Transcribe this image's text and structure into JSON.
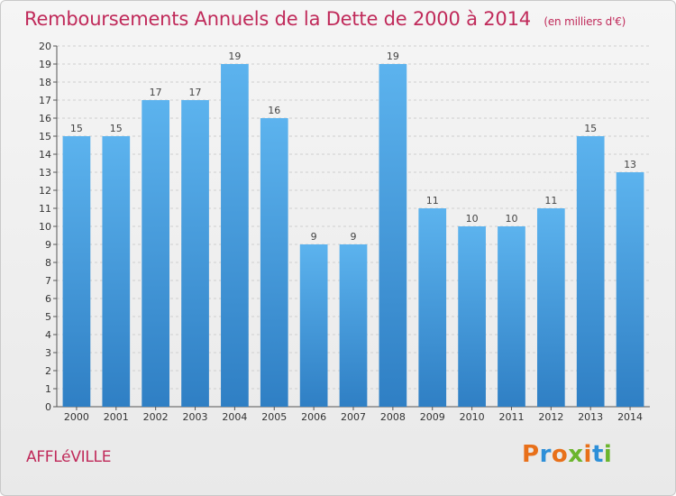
{
  "chart_data": {
    "type": "bar",
    "title": "Remboursements Annuels de la Dette de 2000 à 2014",
    "subtitle": "(en milliers d'€)",
    "categories": [
      "2000",
      "2001",
      "2002",
      "2003",
      "2004",
      "2005",
      "2006",
      "2007",
      "2008",
      "2009",
      "2010",
      "2011",
      "2012",
      "2013",
      "2014"
    ],
    "values": [
      15,
      15,
      17,
      17,
      19,
      16,
      9,
      9,
      19,
      11,
      10,
      10,
      11,
      15,
      13
    ],
    "ylim": [
      0,
      20
    ],
    "yticks": [
      0,
      1,
      2,
      3,
      4,
      5,
      6,
      7,
      8,
      9,
      10,
      11,
      12,
      13,
      14,
      15,
      16,
      17,
      18,
      19,
      20
    ],
    "xlabel": "",
    "ylabel": "",
    "grid": "horizontal-dashed"
  },
  "footer": {
    "commune": "AFFLéVILLE",
    "logo_text": "Proxiti"
  },
  "colors": {
    "title": "#c02a5a",
    "bar_top": "#5cb3ee",
    "bar_bottom": "#2f7fc4",
    "logo": [
      "#e8701a",
      "#2d8fd8",
      "#e8701a",
      "#6bb52d",
      "#e8701a",
      "#2d8fd8",
      "#6bb52d"
    ]
  }
}
